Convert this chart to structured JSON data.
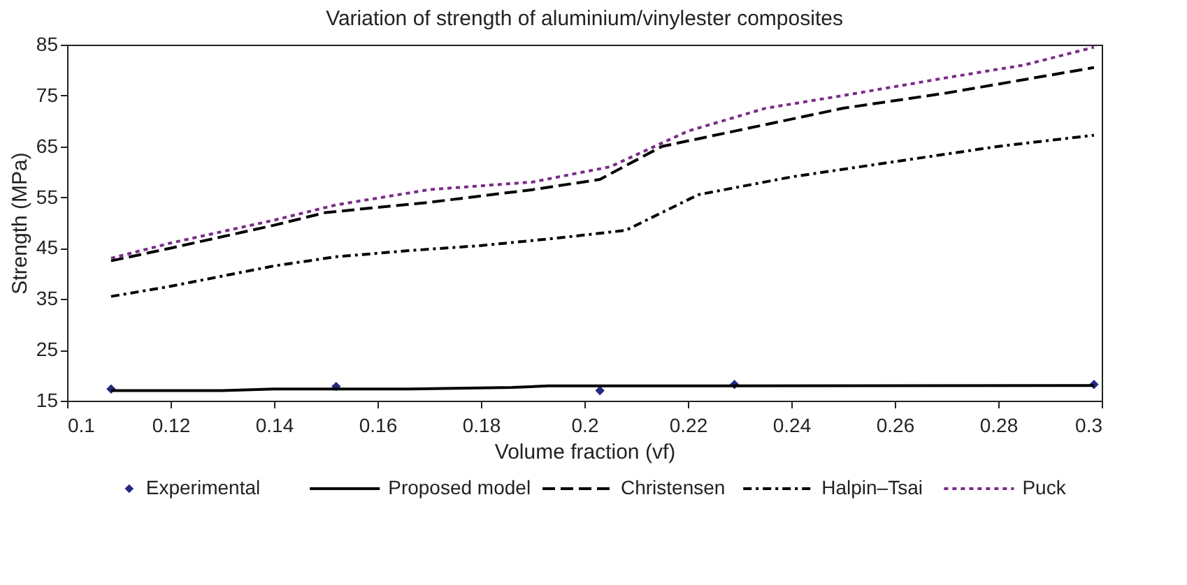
{
  "chart_data": {
    "type": "line",
    "title": "Variation of strength of aluminium/vinylester composites",
    "xlabel": "Volume fraction (vf)",
    "ylabel": "Strength (MPa)",
    "xlim": [
      0.1,
      0.3
    ],
    "xticks": [
      0.1,
      0.12,
      0.14,
      0.16,
      0.18,
      0.2,
      0.22,
      0.24,
      0.26,
      0.28,
      0.3
    ],
    "ylim": [
      15,
      85
    ],
    "yticks": [
      15,
      25,
      35,
      45,
      55,
      65,
      75,
      85
    ],
    "grid": false,
    "legend": "bottom",
    "series": [
      {
        "name": "Experimental",
        "type": "scatter",
        "marker": "diamond",
        "color": "#252a80",
        "x": [
          0.1085,
          0.152,
          0.203,
          0.229,
          0.2985
        ],
        "values": [
          17.3,
          17.8,
          17.0,
          18.2,
          18.2
        ]
      },
      {
        "name": "Proposed model",
        "type": "line",
        "line_style": "solid",
        "color": "#000000",
        "x": [
          0.1085,
          0.13,
          0.14,
          0.166,
          0.186,
          0.193,
          0.2985
        ],
        "values": [
          17.0,
          17.0,
          17.3,
          17.3,
          17.6,
          17.9,
          18.0
        ]
      },
      {
        "name": "Christensen",
        "type": "line",
        "line_style": "dashed",
        "color": "#000000",
        "x": [
          0.1085,
          0.12,
          0.14,
          0.15,
          0.17,
          0.19,
          0.203,
          0.215,
          0.229,
          0.25,
          0.27,
          0.2985
        ],
        "values": [
          42.5,
          45,
          49.5,
          52,
          54,
          56.5,
          58.5,
          65,
          68,
          72.5,
          75.5,
          80.5
        ]
      },
      {
        "name": "Halpin–Tsai",
        "type": "line",
        "line_style": "dashdot",
        "color": "#000000",
        "x": [
          0.1085,
          0.12,
          0.14,
          0.152,
          0.166,
          0.18,
          0.195,
          0.208,
          0.222,
          0.24,
          0.26,
          0.28,
          0.2985
        ],
        "values": [
          35.5,
          37.5,
          41.5,
          43.3,
          44.5,
          45.5,
          47,
          48.5,
          55.5,
          59,
          62,
          65,
          67.2
        ]
      },
      {
        "name": "Puck",
        "type": "line",
        "line_style": "dotted",
        "color": "#7b2a8a",
        "x": [
          0.1085,
          0.12,
          0.14,
          0.152,
          0.17,
          0.19,
          0.205,
          0.22,
          0.235,
          0.25,
          0.27,
          0.285,
          0.2985
        ],
        "values": [
          43,
          46,
          50.5,
          53.5,
          56.5,
          58,
          61,
          68,
          72.5,
          75,
          78.5,
          81,
          84.5
        ]
      }
    ]
  }
}
